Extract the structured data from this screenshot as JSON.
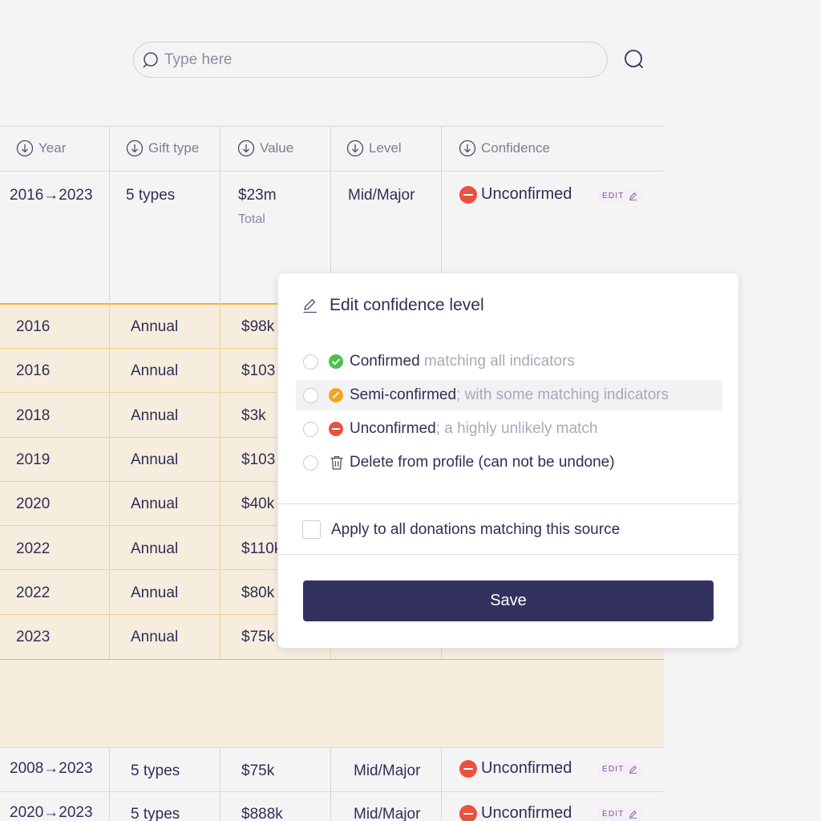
{
  "search": {
    "placeholder": "Type here"
  },
  "table": {
    "headers": [
      "Year",
      "Gift type",
      "Value",
      "Level",
      "Confidence"
    ],
    "summary_row": {
      "year": "2016→2023",
      "gift_type": "5 types",
      "value": "$23m",
      "value_sub": "Total",
      "level": "Mid/Major",
      "confidence": "Unconfirmed",
      "edit_label": "EDIT"
    },
    "expanded_rows": [
      {
        "year": "2016",
        "gift_type": "Annual",
        "value": "$98k"
      },
      {
        "year": "2016",
        "gift_type": "Annual",
        "value": "$103"
      },
      {
        "year": "2018",
        "gift_type": "Annual",
        "value": "$3k"
      },
      {
        "year": "2019",
        "gift_type": "Annual",
        "value": "$103"
      },
      {
        "year": "2020",
        "gift_type": "Annual",
        "value": "$40k"
      },
      {
        "year": "2022",
        "gift_type": "Annual",
        "value": "$110k"
      },
      {
        "year": "2022",
        "gift_type": "Annual",
        "value": "$80k"
      },
      {
        "year": "2023",
        "gift_type": "Annual",
        "value": "$75k"
      }
    ],
    "bottom_rows": [
      {
        "year": "2008→2023",
        "gift_type": "5 types",
        "value": "$75k",
        "level": "Mid/Major",
        "confidence": "Unconfirmed",
        "edit_label": "EDIT"
      },
      {
        "year": "2020→2023",
        "gift_type": "5 types",
        "value": "$888k",
        "level": "Mid/Major",
        "confidence": "Unconfirmed",
        "edit_label": "EDIT"
      }
    ]
  },
  "popover": {
    "title": "Edit confidence level",
    "options": [
      {
        "main": "Confirmed",
        "desc": " matching all indicators",
        "status_color": "#4cc04a",
        "icon": "check-icon"
      },
      {
        "main": "Semi-confirmed",
        "desc": "; with some matching indicators",
        "status_color": "#f3a524",
        "icon": "pencil-icon"
      },
      {
        "main": "Unconfirmed",
        "desc": "; a highly unlikely match",
        "status_color": "#e8533f",
        "icon": "minus-icon"
      },
      {
        "main": "Delete from profile (can not be undone)",
        "desc": "",
        "icon": "trash-icon"
      }
    ],
    "apply_all_label": "Apply to all donations matching this source",
    "save_label": "Save"
  },
  "colors": {
    "primary": "#33325e",
    "expanded_bg": "#f6eddf",
    "expanded_accent": "#f1b23c",
    "unconfirmed": "#e8533f"
  }
}
